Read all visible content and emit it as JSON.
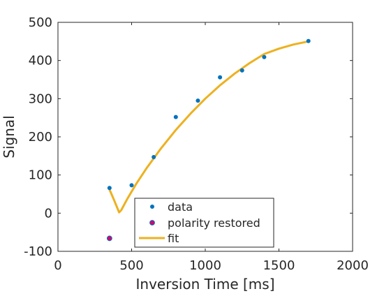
{
  "chart_data": {
    "type": "scatter",
    "title": "",
    "xlabel": "Inversion Time [ms]",
    "ylabel": "Signal",
    "xlim": [
      0,
      2000
    ],
    "ylim": [
      -100,
      500
    ],
    "xticks": [
      0,
      500,
      1000,
      1500,
      2000
    ],
    "yticks": [
      -100,
      0,
      100,
      200,
      300,
      400,
      500
    ],
    "grid": false,
    "legend_position": "bottom-center",
    "series": [
      {
        "name": "data",
        "kind": "scatter",
        "color": "#0072BD",
        "x": [
          350,
          500,
          650,
          800,
          950,
          1100,
          1250,
          1400,
          1700
        ],
        "y": [
          66,
          73,
          147,
          252,
          295,
          356,
          374,
          409,
          451
        ]
      },
      {
        "name": "polarity restored",
        "kind": "scatter",
        "color": "#D6006F",
        "edge_color": "#0072BD",
        "x": [
          350
        ],
        "y": [
          -66
        ]
      },
      {
        "name": "fit",
        "kind": "line",
        "color": "#EDB120",
        "x": [
          350,
          380,
          415,
          430,
          470,
          530,
          600,
          700,
          800,
          900,
          1000,
          1100,
          1200,
          1300,
          1400,
          1500,
          1600,
          1700
        ],
        "y": [
          62,
          35,
          2,
          8,
          37,
          76,
          117,
          170,
          218,
          261,
          300,
          335,
          366,
          393,
          417,
          431,
          442,
          450
        ]
      }
    ]
  }
}
